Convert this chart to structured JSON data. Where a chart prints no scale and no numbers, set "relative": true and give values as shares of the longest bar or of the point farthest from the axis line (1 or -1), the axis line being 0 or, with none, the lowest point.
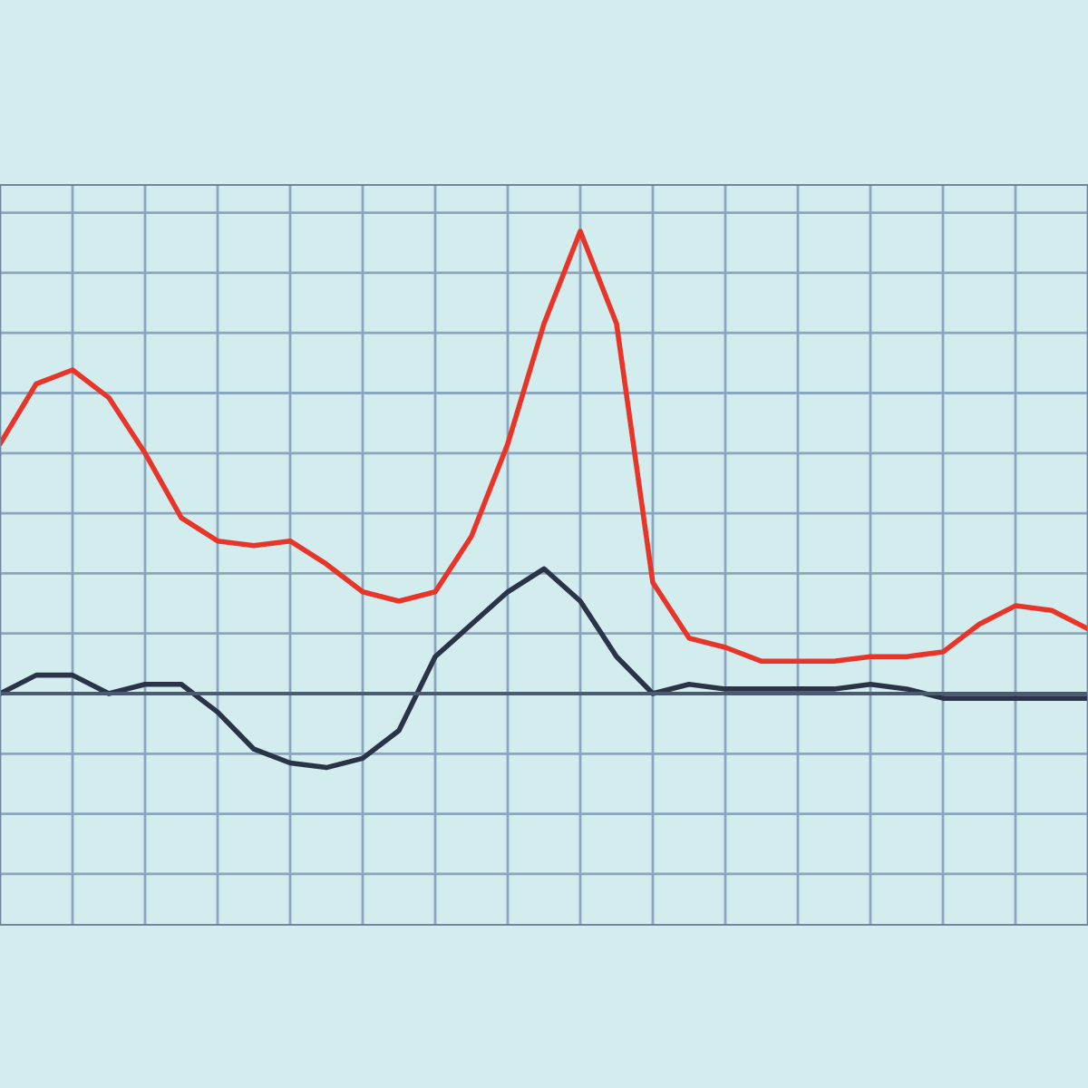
{
  "chart_data": {
    "type": "line",
    "relative": true,
    "grid": true,
    "tick_labels": false,
    "legend": false,
    "marker": "none",
    "line_style": "solid",
    "categories": [
      null,
      null,
      null,
      null,
      null,
      null,
      null,
      null,
      null,
      null,
      null,
      null,
      null,
      null,
      null,
      null,
      null,
      null,
      null,
      null,
      null,
      null,
      null,
      null,
      null,
      null,
      null,
      null,
      null,
      null,
      null
    ],
    "series": [
      {
        "color": "#e8352a",
        "values": [
          0.54,
          0.67,
          0.7,
          0.64,
          0.52,
          0.38,
          0.33,
          0.32,
          0.33,
          0.28,
          0.22,
          0.2,
          0.22,
          0.34,
          0.54,
          0.8,
          1.0,
          0.8,
          0.24,
          0.12,
          0.1,
          0.07,
          0.07,
          0.07,
          0.08,
          0.08,
          0.09,
          0.15,
          0.19,
          0.18,
          0.14
        ]
      },
      {
        "color": "#2a3348",
        "values": [
          0.0,
          0.04,
          0.04,
          0.0,
          0.02,
          0.02,
          -0.04,
          -0.12,
          -0.15,
          -0.16,
          -0.14,
          -0.08,
          0.08,
          0.15,
          0.22,
          0.27,
          0.2,
          0.08,
          0.0,
          0.02,
          0.01,
          0.01,
          0.01,
          0.01,
          0.02,
          0.01,
          -0.01,
          -0.01,
          -0.01,
          -0.01,
          -0.01
        ]
      }
    ]
  }
}
